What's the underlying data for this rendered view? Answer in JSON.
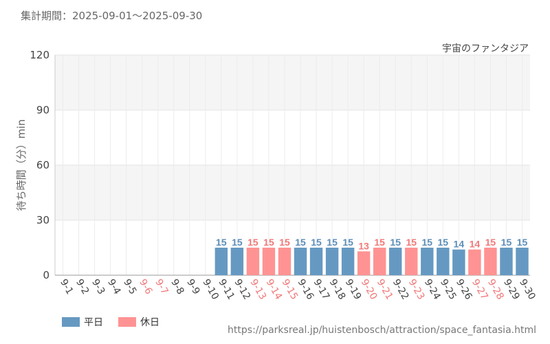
{
  "header": {
    "period": "集計期間：2025-09-01～2025-09-30"
  },
  "source_url": "https://parksreal.jp/huistenbosch/attraction/space_fantasia.html",
  "colors": {
    "weekday": "#6699c2",
    "holiday": "#ff9393",
    "weekday_label": "#5b8db8",
    "holiday_label": "#f07878",
    "band": "#f5f5f5",
    "grid": "#e3e3e3"
  },
  "chart_data": {
    "type": "bar",
    "title": "宇宙のファンタジア",
    "ylabel": "待ち時間（分）min",
    "ylim": [
      0,
      120
    ],
    "yticks": [
      0,
      30,
      60,
      90,
      120
    ],
    "categories": [
      "9-1",
      "9-2",
      "9-3",
      "9-4",
      "9-5",
      "9-6",
      "9-7",
      "9-8",
      "9-9",
      "9-10",
      "9-11",
      "9-12",
      "9-13",
      "9-14",
      "9-15",
      "9-16",
      "9-17",
      "9-18",
      "9-19",
      "9-20",
      "9-21",
      "9-22",
      "9-23",
      "9-24",
      "9-25",
      "9-26",
      "9-27",
      "9-28",
      "9-29",
      "9-30"
    ],
    "values": [
      null,
      null,
      null,
      null,
      null,
      null,
      null,
      null,
      null,
      null,
      15,
      15,
      15,
      15,
      15,
      15,
      15,
      15,
      15,
      13,
      15,
      15,
      15,
      15,
      15,
      14,
      14,
      15,
      15,
      15
    ],
    "day_type": [
      "weekday",
      "weekday",
      "weekday",
      "weekday",
      "weekday",
      "holiday",
      "holiday",
      "weekday",
      "weekday",
      "weekday",
      "weekday",
      "weekday",
      "holiday",
      "holiday",
      "holiday",
      "weekday",
      "weekday",
      "weekday",
      "weekday",
      "holiday",
      "holiday",
      "weekday",
      "holiday",
      "weekday",
      "weekday",
      "weekday",
      "holiday",
      "holiday",
      "weekday",
      "weekday"
    ],
    "legend": [
      {
        "key": "weekday",
        "label": "平日"
      },
      {
        "key": "holiday",
        "label": "休日"
      }
    ],
    "legend_position": "bottom-left"
  }
}
